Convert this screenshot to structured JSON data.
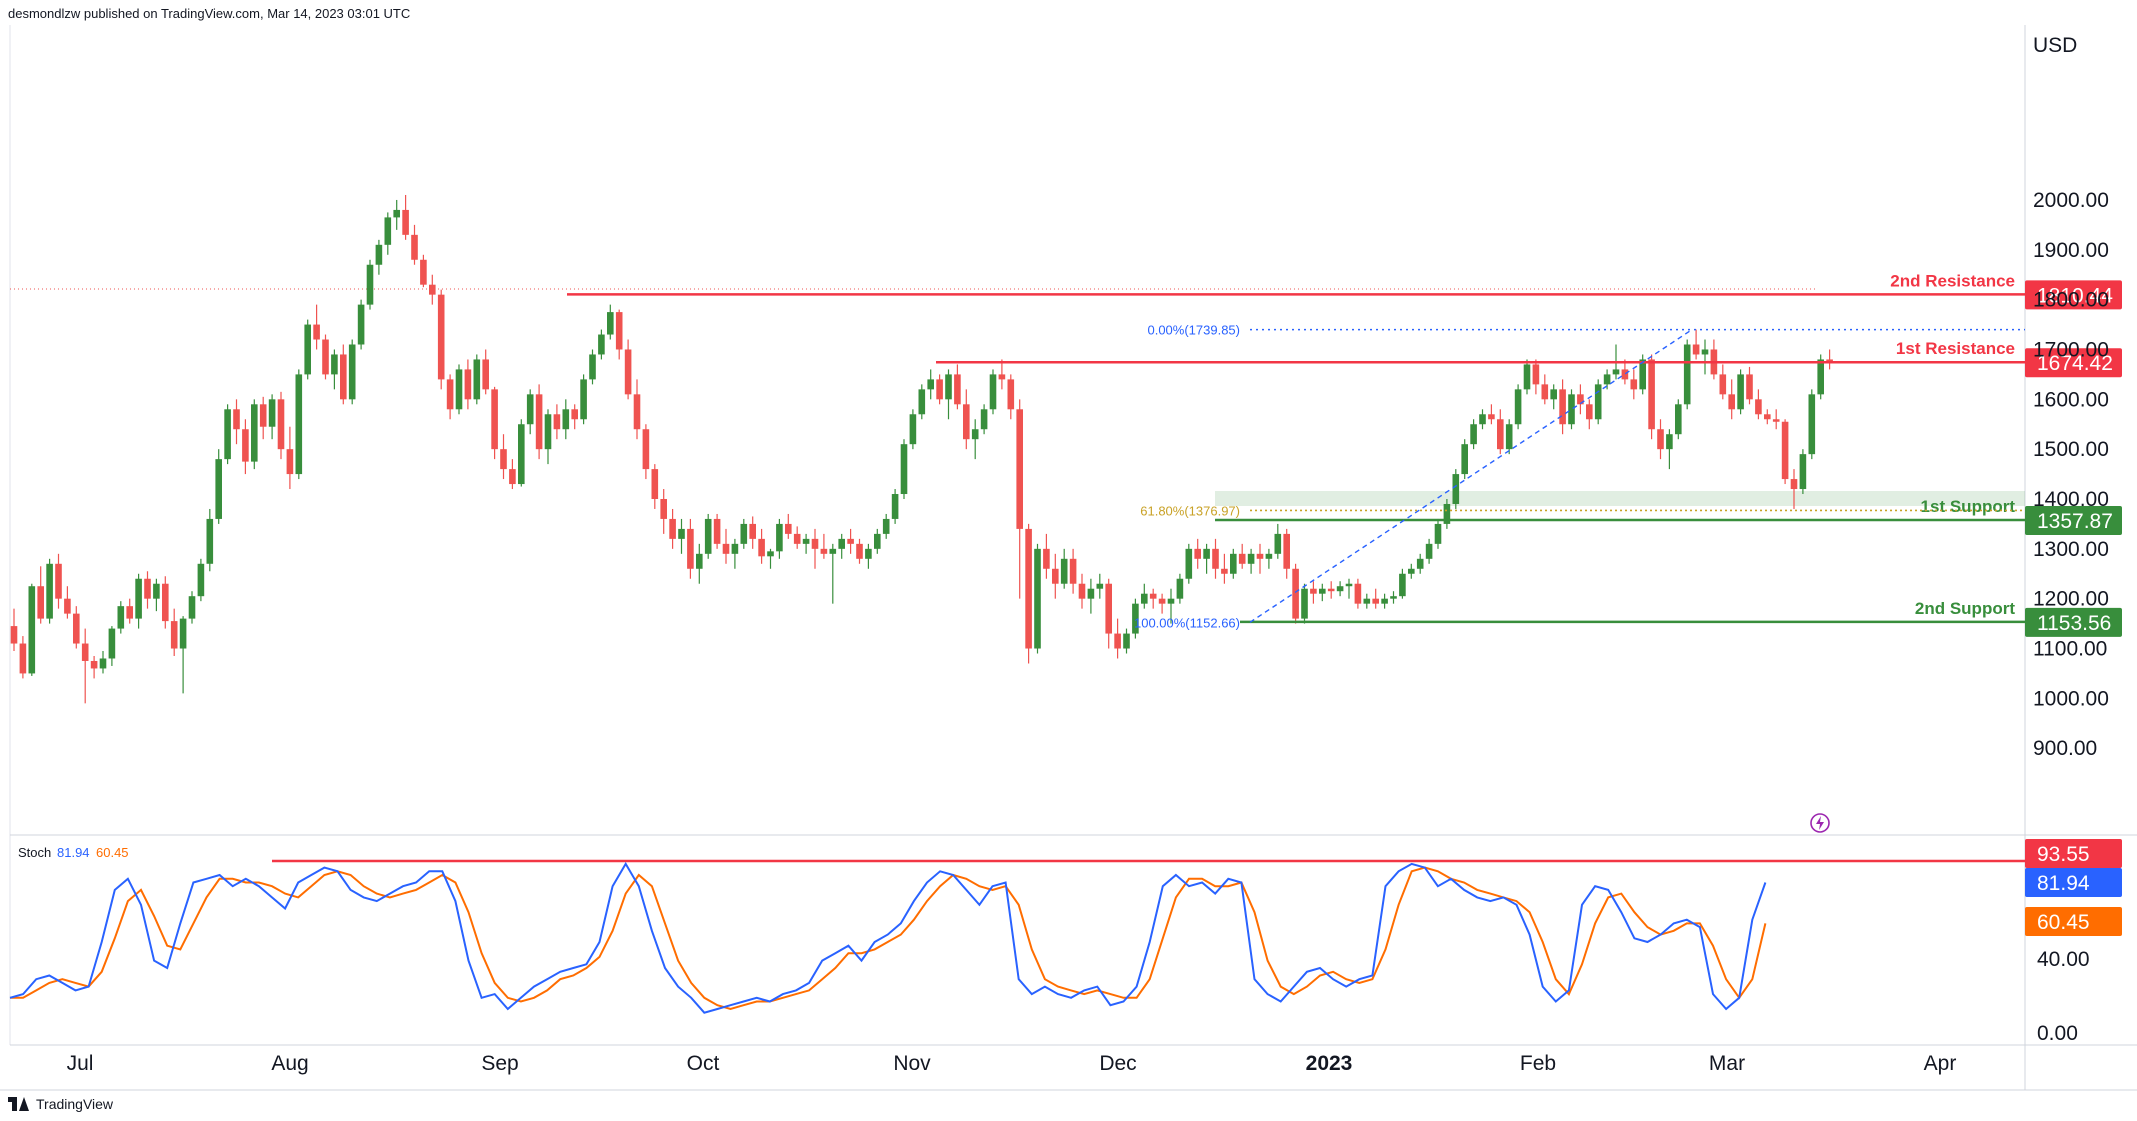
{
  "header": {
    "text": "desmondlzw published on TradingView.com, Mar 14, 2023 03:01 UTC"
  },
  "footer": {
    "brand": "TradingView"
  },
  "currency": "USD",
  "price_axis": {
    "ticks": [
      "2000.00",
      "1900.00",
      "1800.00",
      "1700.00",
      "1600.00",
      "1500.00",
      "1400.00",
      "1300.00",
      "1200.00",
      "1100.00",
      "1000.00",
      "900.00"
    ],
    "values": [
      2000,
      1900,
      1800,
      1700,
      1600,
      1500,
      1400,
      1300,
      1200,
      1100,
      1000,
      900
    ],
    "range": [
      880,
      2040
    ]
  },
  "time_axis": {
    "labels": [
      "Jul",
      "Aug",
      "Sep",
      "Oct",
      "Nov",
      "Dec",
      "2023",
      "Feb",
      "Mar",
      "Apr"
    ]
  },
  "levels": [
    {
      "name": "2nd Resistance",
      "price": 1810.44,
      "badge": "1810.44",
      "color": "#f23645"
    },
    {
      "name": "1st Resistance",
      "price": 1674.42,
      "badge": "1674.42",
      "color": "#f23645"
    },
    {
      "name": "1st Support",
      "price": 1357.87,
      "badge": "1357.87",
      "color": "#388e3c"
    },
    {
      "name": "2nd Support",
      "price": 1153.56,
      "badge": "1153.56",
      "color": "#388e3c"
    }
  ],
  "fib": {
    "top": {
      "label": "0.00%(1739.85)",
      "price": 1739.85
    },
    "mid": {
      "label": "61.80%(1376.97)",
      "price": 1376.97
    },
    "bottom": {
      "label": "100.00%(1152.66)",
      "price": 1152.66
    }
  },
  "stoch": {
    "label": "Stoch",
    "k_value": "81.94",
    "d_value": "60.45",
    "level_value": "93.55",
    "ticks": [
      "40.00",
      "0.00"
    ],
    "k_color": "#2962ff",
    "d_color": "#ff6d00",
    "level_color": "#f23645"
  },
  "colors": {
    "up": "#388e3c",
    "down": "#ef5350",
    "accent": "#9c27b0"
  },
  "chart_data": {
    "type": "candlestick",
    "title": "",
    "xlabel": "",
    "ylabel": "USD",
    "ylim": [
      880,
      2040
    ],
    "candles": [
      [
        1145,
        1180,
        1095,
        1110
      ],
      [
        1110,
        1125,
        1040,
        1050
      ],
      [
        1050,
        1230,
        1045,
        1225
      ],
      [
        1225,
        1265,
        1150,
        1160
      ],
      [
        1160,
        1280,
        1150,
        1270
      ],
      [
        1270,
        1290,
        1180,
        1200
      ],
      [
        1200,
        1225,
        1160,
        1170
      ],
      [
        1170,
        1185,
        1100,
        1110
      ],
      [
        1110,
        1140,
        990,
        1075
      ],
      [
        1075,
        1085,
        1040,
        1060
      ],
      [
        1060,
        1095,
        1050,
        1080
      ],
      [
        1080,
        1145,
        1065,
        1140
      ],
      [
        1140,
        1195,
        1130,
        1185
      ],
      [
        1185,
        1200,
        1150,
        1160
      ],
      [
        1160,
        1250,
        1140,
        1240
      ],
      [
        1240,
        1255,
        1180,
        1200
      ],
      [
        1200,
        1240,
        1175,
        1230
      ],
      [
        1230,
        1245,
        1140,
        1155
      ],
      [
        1155,
        1180,
        1085,
        1100
      ],
      [
        1100,
        1165,
        1010,
        1160
      ],
      [
        1160,
        1215,
        1150,
        1205
      ],
      [
        1205,
        1280,
        1195,
        1270
      ],
      [
        1270,
        1380,
        1255,
        1360
      ],
      [
        1360,
        1500,
        1350,
        1480
      ],
      [
        1480,
        1590,
        1470,
        1580
      ],
      [
        1580,
        1600,
        1510,
        1540
      ],
      [
        1540,
        1560,
        1450,
        1475
      ],
      [
        1475,
        1600,
        1460,
        1590
      ],
      [
        1590,
        1605,
        1520,
        1545
      ],
      [
        1545,
        1610,
        1520,
        1600
      ],
      [
        1600,
        1615,
        1480,
        1500
      ],
      [
        1500,
        1545,
        1420,
        1450
      ],
      [
        1450,
        1660,
        1440,
        1650
      ],
      [
        1650,
        1760,
        1640,
        1750
      ],
      [
        1750,
        1790,
        1700,
        1720
      ],
      [
        1720,
        1730,
        1640,
        1650
      ],
      [
        1650,
        1700,
        1620,
        1690
      ],
      [
        1690,
        1710,
        1590,
        1600
      ],
      [
        1600,
        1720,
        1590,
        1710
      ],
      [
        1710,
        1800,
        1700,
        1790
      ],
      [
        1790,
        1880,
        1780,
        1870
      ],
      [
        1870,
        1920,
        1850,
        1910
      ],
      [
        1910,
        1975,
        1890,
        1965
      ],
      [
        1965,
        2000,
        1940,
        1980
      ],
      [
        1980,
        2010,
        1920,
        1930
      ],
      [
        1930,
        1950,
        1870,
        1880
      ],
      [
        1880,
        1890,
        1825,
        1830
      ],
      [
        1830,
        1850,
        1790,
        1810
      ],
      [
        1810,
        1820,
        1620,
        1640
      ],
      [
        1640,
        1650,
        1560,
        1580
      ],
      [
        1580,
        1670,
        1570,
        1660
      ],
      [
        1660,
        1680,
        1580,
        1600
      ],
      [
        1600,
        1690,
        1590,
        1680
      ],
      [
        1680,
        1700,
        1610,
        1620
      ],
      [
        1620,
        1625,
        1480,
        1500
      ],
      [
        1500,
        1530,
        1440,
        1460
      ],
      [
        1460,
        1480,
        1420,
        1430
      ],
      [
        1430,
        1560,
        1425,
        1550
      ],
      [
        1550,
        1620,
        1530,
        1610
      ],
      [
        1610,
        1630,
        1480,
        1500
      ],
      [
        1500,
        1580,
        1470,
        1570
      ],
      [
        1570,
        1590,
        1520,
        1540
      ],
      [
        1540,
        1600,
        1520,
        1580
      ],
      [
        1580,
        1590,
        1540,
        1560
      ],
      [
        1560,
        1650,
        1550,
        1640
      ],
      [
        1640,
        1700,
        1630,
        1690
      ],
      [
        1690,
        1740,
        1680,
        1730
      ],
      [
        1730,
        1790,
        1720,
        1775
      ],
      [
        1775,
        1780,
        1680,
        1700
      ],
      [
        1700,
        1720,
        1600,
        1610
      ],
      [
        1610,
        1640,
        1520,
        1540
      ],
      [
        1540,
        1550,
        1440,
        1460
      ],
      [
        1460,
        1470,
        1380,
        1400
      ],
      [
        1400,
        1420,
        1330,
        1360
      ],
      [
        1360,
        1380,
        1300,
        1320
      ],
      [
        1320,
        1360,
        1290,
        1340
      ],
      [
        1340,
        1360,
        1240,
        1260
      ],
      [
        1260,
        1310,
        1230,
        1290
      ],
      [
        1290,
        1370,
        1280,
        1360
      ],
      [
        1360,
        1370,
        1300,
        1310
      ],
      [
        1310,
        1340,
        1270,
        1290
      ],
      [
        1290,
        1320,
        1260,
        1310
      ],
      [
        1310,
        1360,
        1300,
        1350
      ],
      [
        1350,
        1365,
        1300,
        1320
      ],
      [
        1320,
        1340,
        1270,
        1285
      ],
      [
        1285,
        1300,
        1260,
        1295
      ],
      [
        1295,
        1360,
        1280,
        1350
      ],
      [
        1350,
        1370,
        1320,
        1330
      ],
      [
        1330,
        1345,
        1300,
        1310
      ],
      [
        1310,
        1330,
        1290,
        1320
      ],
      [
        1320,
        1340,
        1260,
        1300
      ],
      [
        1300,
        1330,
        1280,
        1290
      ],
      [
        1290,
        1310,
        1190,
        1300
      ],
      [
        1300,
        1330,
        1280,
        1320
      ],
      [
        1320,
        1340,
        1290,
        1310
      ],
      [
        1310,
        1320,
        1270,
        1280
      ],
      [
        1280,
        1310,
        1260,
        1300
      ],
      [
        1300,
        1340,
        1290,
        1330
      ],
      [
        1330,
        1370,
        1320,
        1360
      ],
      [
        1360,
        1420,
        1350,
        1410
      ],
      [
        1410,
        1520,
        1400,
        1510
      ],
      [
        1510,
        1580,
        1500,
        1570
      ],
      [
        1570,
        1630,
        1560,
        1620
      ],
      [
        1620,
        1660,
        1600,
        1640
      ],
      [
        1640,
        1650,
        1590,
        1600
      ],
      [
        1600,
        1660,
        1560,
        1650
      ],
      [
        1650,
        1670,
        1580,
        1590
      ],
      [
        1590,
        1620,
        1500,
        1520
      ],
      [
        1520,
        1560,
        1480,
        1540
      ],
      [
        1540,
        1590,
        1530,
        1580
      ],
      [
        1580,
        1660,
        1570,
        1650
      ],
      [
        1650,
        1680,
        1620,
        1640
      ],
      [
        1640,
        1650,
        1560,
        1580
      ],
      [
        1580,
        1600,
        1200,
        1340
      ],
      [
        1340,
        1350,
        1070,
        1100
      ],
      [
        1100,
        1310,
        1090,
        1300
      ],
      [
        1300,
        1330,
        1240,
        1260
      ],
      [
        1260,
        1290,
        1200,
        1230
      ],
      [
        1230,
        1300,
        1220,
        1280
      ],
      [
        1280,
        1300,
        1210,
        1230
      ],
      [
        1230,
        1250,
        1180,
        1200
      ],
      [
        1200,
        1240,
        1170,
        1220
      ],
      [
        1220,
        1250,
        1200,
        1230
      ],
      [
        1230,
        1240,
        1100,
        1130
      ],
      [
        1130,
        1160,
        1080,
        1100
      ],
      [
        1100,
        1140,
        1090,
        1130
      ],
      [
        1130,
        1200,
        1120,
        1190
      ],
      [
        1190,
        1230,
        1180,
        1210
      ],
      [
        1210,
        1220,
        1180,
        1200
      ],
      [
        1200,
        1210,
        1170,
        1190
      ],
      [
        1190,
        1220,
        1150,
        1200
      ],
      [
        1200,
        1250,
        1190,
        1240
      ],
      [
        1240,
        1310,
        1230,
        1300
      ],
      [
        1300,
        1320,
        1260,
        1280
      ],
      [
        1280,
        1310,
        1250,
        1300
      ],
      [
        1300,
        1320,
        1240,
        1260
      ],
      [
        1260,
        1290,
        1230,
        1250
      ],
      [
        1250,
        1300,
        1240,
        1290
      ],
      [
        1290,
        1310,
        1260,
        1270
      ],
      [
        1270,
        1300,
        1250,
        1290
      ],
      [
        1290,
        1310,
        1250,
        1280
      ],
      [
        1280,
        1300,
        1260,
        1290
      ],
      [
        1290,
        1350,
        1280,
        1330
      ],
      [
        1330,
        1340,
        1240,
        1260
      ],
      [
        1260,
        1270,
        1150,
        1160
      ],
      [
        1160,
        1230,
        1150,
        1220
      ],
      [
        1220,
        1235,
        1190,
        1210
      ],
      [
        1210,
        1230,
        1195,
        1220
      ],
      [
        1220,
        1235,
        1200,
        1215
      ],
      [
        1215,
        1235,
        1205,
        1225
      ],
      [
        1225,
        1240,
        1200,
        1230
      ],
      [
        1230,
        1240,
        1180,
        1190
      ],
      [
        1190,
        1210,
        1180,
        1200
      ],
      [
        1200,
        1220,
        1180,
        1190
      ],
      [
        1190,
        1210,
        1180,
        1200
      ],
      [
        1200,
        1215,
        1190,
        1205
      ],
      [
        1205,
        1260,
        1200,
        1250
      ],
      [
        1250,
        1270,
        1240,
        1260
      ],
      [
        1260,
        1290,
        1250,
        1280
      ],
      [
        1280,
        1320,
        1270,
        1310
      ],
      [
        1310,
        1360,
        1300,
        1350
      ],
      [
        1350,
        1400,
        1340,
        1390
      ],
      [
        1390,
        1460,
        1380,
        1450
      ],
      [
        1450,
        1520,
        1440,
        1510
      ],
      [
        1510,
        1560,
        1500,
        1550
      ],
      [
        1550,
        1580,
        1540,
        1570
      ],
      [
        1570,
        1590,
        1550,
        1560
      ],
      [
        1560,
        1580,
        1490,
        1500
      ],
      [
        1500,
        1560,
        1490,
        1550
      ],
      [
        1550,
        1630,
        1540,
        1620
      ],
      [
        1620,
        1680,
        1610,
        1670
      ],
      [
        1670,
        1680,
        1610,
        1630
      ],
      [
        1630,
        1650,
        1590,
        1600
      ],
      [
        1600,
        1630,
        1580,
        1620
      ],
      [
        1620,
        1640,
        1530,
        1550
      ],
      [
        1550,
        1620,
        1540,
        1610
      ],
      [
        1610,
        1630,
        1570,
        1590
      ],
      [
        1590,
        1600,
        1540,
        1560
      ],
      [
        1560,
        1640,
        1550,
        1630
      ],
      [
        1630,
        1660,
        1620,
        1650
      ],
      [
        1650,
        1710,
        1640,
        1660
      ],
      [
        1660,
        1680,
        1630,
        1640
      ],
      [
        1640,
        1660,
        1600,
        1620
      ],
      [
        1620,
        1690,
        1610,
        1680
      ],
      [
        1680,
        1690,
        1520,
        1540
      ],
      [
        1540,
        1560,
        1480,
        1500
      ],
      [
        1500,
        1540,
        1460,
        1530
      ],
      [
        1530,
        1600,
        1520,
        1590
      ],
      [
        1590,
        1720,
        1580,
        1710
      ],
      [
        1710,
        1740,
        1680,
        1690
      ],
      [
        1690,
        1720,
        1650,
        1700
      ],
      [
        1700,
        1720,
        1640,
        1650
      ],
      [
        1650,
        1670,
        1600,
        1610
      ],
      [
        1610,
        1640,
        1560,
        1580
      ],
      [
        1580,
        1660,
        1570,
        1650
      ],
      [
        1650,
        1665,
        1590,
        1600
      ],
      [
        1600,
        1620,
        1560,
        1570
      ],
      [
        1570,
        1580,
        1550,
        1560
      ],
      [
        1560,
        1580,
        1540,
        1555
      ],
      [
        1555,
        1560,
        1430,
        1440
      ],
      [
        1440,
        1460,
        1380,
        1420
      ],
      [
        1420,
        1500,
        1410,
        1490
      ],
      [
        1490,
        1620,
        1480,
        1610
      ],
      [
        1610,
        1690,
        1600,
        1680
      ],
      [
        1680,
        1700,
        1660,
        1674
      ]
    ],
    "stoch_k": [
      20,
      22,
      30,
      32,
      28,
      24,
      26,
      50,
      78,
      84,
      70,
      40,
      36,
      60,
      82,
      84,
      86,
      80,
      84,
      80,
      74,
      68,
      82,
      86,
      90,
      88,
      78,
      74,
      72,
      76,
      80,
      82,
      88,
      88,
      72,
      40,
      20,
      22,
      14,
      20,
      26,
      30,
      34,
      36,
      38,
      50,
      80,
      92,
      80,
      56,
      36,
      26,
      20,
      12,
      14,
      16,
      18,
      20,
      18,
      22,
      24,
      28,
      40,
      44,
      48,
      40,
      50,
      54,
      60,
      72,
      82,
      88,
      86,
      78,
      70,
      80,
      82,
      30,
      22,
      26,
      22,
      20,
      24,
      26,
      16,
      18,
      26,
      50,
      80,
      86,
      80,
      82,
      76,
      84,
      82,
      30,
      22,
      18,
      26,
      34,
      36,
      30,
      26,
      30,
      32,
      80,
      88,
      92,
      90,
      80,
      84,
      78,
      74,
      72,
      74,
      70,
      54,
      26,
      18,
      24,
      70,
      80,
      78,
      66,
      52,
      50,
      54,
      60,
      62,
      58,
      22,
      14,
      20,
      62,
      82
    ],
    "stoch_d": [
      20,
      20,
      24,
      28,
      30,
      28,
      26,
      34,
      52,
      72,
      78,
      64,
      48,
      46,
      60,
      74,
      84,
      84,
      82,
      82,
      80,
      76,
      74,
      80,
      86,
      88,
      86,
      80,
      76,
      74,
      76,
      78,
      82,
      86,
      82,
      66,
      44,
      28,
      20,
      18,
      20,
      24,
      30,
      32,
      36,
      42,
      56,
      76,
      86,
      80,
      60,
      40,
      28,
      20,
      16,
      14,
      16,
      18,
      18,
      20,
      22,
      24,
      30,
      36,
      44,
      44,
      46,
      50,
      54,
      62,
      72,
      80,
      86,
      84,
      80,
      78,
      80,
      70,
      46,
      30,
      26,
      24,
      22,
      24,
      22,
      20,
      20,
      30,
      52,
      74,
      84,
      84,
      80,
      80,
      82,
      66,
      40,
      26,
      22,
      26,
      32,
      34,
      30,
      28,
      30,
      46,
      70,
      88,
      90,
      88,
      84,
      82,
      78,
      76,
      74,
      72,
      66,
      50,
      30,
      22,
      38,
      60,
      74,
      76,
      66,
      58,
      54,
      56,
      60,
      60,
      48,
      30,
      20,
      30,
      60
    ]
  }
}
